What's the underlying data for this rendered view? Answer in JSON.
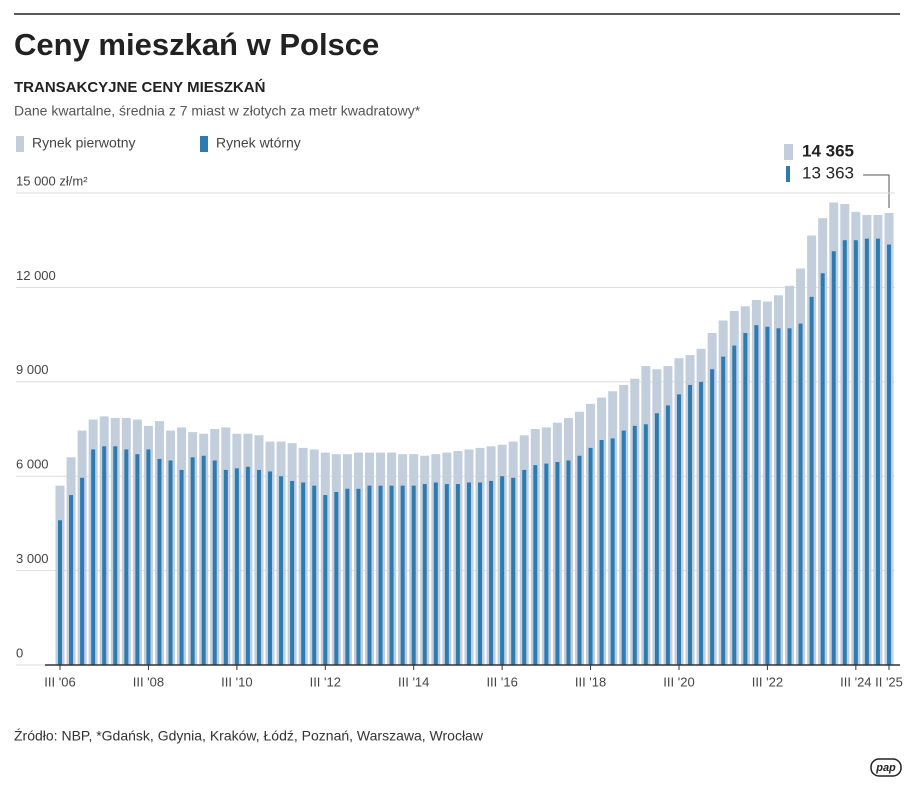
{
  "chart_data": {
    "type": "bar",
    "title": "Ceny mieszkań w Polsce",
    "subtitle": "TRANSAKCYJNE CENY MIESZKAŃ",
    "description": "Dane kwartalne,  średnia z 7 miast w złotych za metr kwadratowy*",
    "source": "Źródło: NBP, *Gdańsk, Gdynia, Kraków, Łódź, Poznań, Warszawa, Wrocław",
    "logo": "pap",
    "categories": [
      "III '06",
      null,
      null,
      null,
      null,
      null,
      null,
      null,
      "III '08",
      null,
      null,
      null,
      null,
      null,
      null,
      null,
      "III '10",
      null,
      null,
      null,
      null,
      null,
      null,
      null,
      "III '12",
      null,
      null,
      null,
      null,
      null,
      null,
      null,
      "III '14",
      null,
      null,
      null,
      null,
      null,
      null,
      null,
      "III '16",
      null,
      null,
      null,
      null,
      null,
      null,
      null,
      "III '18",
      null,
      null,
      null,
      null,
      null,
      null,
      null,
      "III '20",
      null,
      null,
      null,
      null,
      null,
      null,
      null,
      "III '22",
      null,
      null,
      null,
      null,
      null,
      null,
      null,
      "III '24",
      null,
      null,
      "II '25"
    ],
    "series": [
      {
        "name": "Rynek pierwotny",
        "color": "#c3cedd",
        "values": [
          5700,
          6600,
          7450,
          7800,
          7900,
          7850,
          7850,
          7800,
          7600,
          7750,
          7450,
          7550,
          7400,
          7350,
          7500,
          7550,
          7350,
          7350,
          7300,
          7100,
          7100,
          7050,
          6900,
          6850,
          6750,
          6700,
          6700,
          6750,
          6750,
          6750,
          6750,
          6700,
          6700,
          6650,
          6700,
          6750,
          6800,
          6850,
          6900,
          6950,
          7000,
          7100,
          7300,
          7500,
          7550,
          7700,
          7850,
          8050,
          8300,
          8500,
          8700,
          8900,
          9100,
          9500,
          9400,
          9500,
          9750,
          9850,
          10050,
          10550,
          10950,
          11250,
          11400,
          11600,
          11550,
          11750,
          12050,
          12600,
          13650,
          14200,
          14700,
          14650,
          14400,
          14300,
          14300,
          14365
        ],
        "value_labels": [
          null,
          null,
          null,
          null,
          null,
          null,
          null,
          null,
          null,
          null,
          null,
          null,
          null,
          null,
          null,
          null,
          null,
          null,
          null,
          null,
          null,
          null,
          null,
          null,
          null,
          null,
          null,
          null,
          null,
          null,
          null,
          null,
          null,
          null,
          null,
          null,
          null,
          null,
          null,
          null,
          null,
          null,
          null,
          null,
          null,
          null,
          null,
          null,
          null,
          null,
          null,
          null,
          null,
          null,
          null,
          null,
          null,
          null,
          null,
          null,
          null,
          null,
          null,
          null,
          null,
          null,
          null,
          null,
          null,
          null,
          null,
          null,
          null,
          null,
          null,
          "14 365"
        ]
      },
      {
        "name": "Rynek wtórny",
        "color": "#2e7bb0",
        "values": [
          4600,
          5400,
          5950,
          6850,
          6950,
          6950,
          6850,
          6700,
          6850,
          6550,
          6500,
          6200,
          6600,
          6650,
          6500,
          6200,
          6250,
          6300,
          6200,
          6150,
          6000,
          5850,
          5800,
          5700,
          5400,
          5500,
          5600,
          5600,
          5700,
          5700,
          5700,
          5700,
          5700,
          5750,
          5800,
          5750,
          5750,
          5800,
          5800,
          5850,
          6000,
          5950,
          6200,
          6350,
          6400,
          6450,
          6500,
          6650,
          6900,
          7150,
          7200,
          7450,
          7600,
          7650,
          8000,
          8250,
          8600,
          8900,
          9000,
          9400,
          9800,
          10150,
          10550,
          10800,
          10750,
          10700,
          10700,
          10850,
          11700,
          12450,
          13150,
          13500,
          13500,
          13550,
          13550,
          13363
        ],
        "value_labels": [
          null,
          null,
          null,
          null,
          null,
          null,
          null,
          null,
          null,
          null,
          null,
          null,
          null,
          null,
          null,
          null,
          null,
          null,
          null,
          null,
          null,
          null,
          null,
          null,
          null,
          null,
          null,
          null,
          null,
          null,
          null,
          null,
          null,
          null,
          null,
          null,
          null,
          null,
          null,
          null,
          null,
          null,
          null,
          null,
          null,
          null,
          null,
          null,
          null,
          null,
          null,
          null,
          null,
          null,
          null,
          null,
          null,
          null,
          null,
          null,
          null,
          null,
          null,
          null,
          null,
          null,
          null,
          null,
          null,
          null,
          null,
          null,
          null,
          null,
          null,
          "13 363"
        ]
      }
    ],
    "ylim": [
      0,
      15000
    ],
    "yticks": [
      0,
      {
        "value": 3000,
        "label": "3 000"
      },
      {
        "value": 6000,
        "label": "6 000"
      },
      {
        "value": 9000,
        "label": "9 000"
      },
      {
        "value": 12000,
        "label": "12 000"
      },
      {
        "value": 15000,
        "label": "15 000 zł/m²"
      }
    ],
    "grid": true
  }
}
